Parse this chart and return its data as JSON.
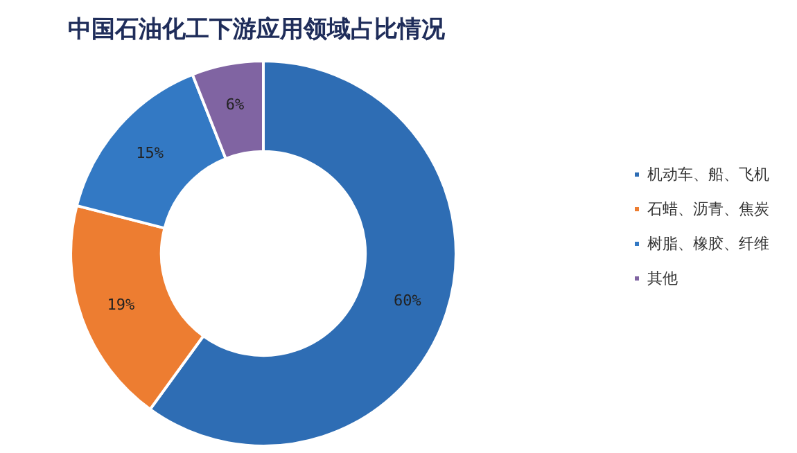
{
  "chart_data": {
    "type": "donut",
    "title": "中国石油化工下游应用领域占比情况",
    "categories": [
      "机动车、船、飞机",
      "石蜡、沥青、焦炭",
      "树脂、橡胶、纤维",
      "其他"
    ],
    "values": [
      60,
      19,
      15,
      6
    ],
    "colors": [
      "#2e6db4",
      "#ed7d31",
      "#3379c4",
      "#8064a2"
    ],
    "value_labels": [
      "60%",
      "19%",
      "15%",
      "6%"
    ],
    "legend": "right"
  }
}
